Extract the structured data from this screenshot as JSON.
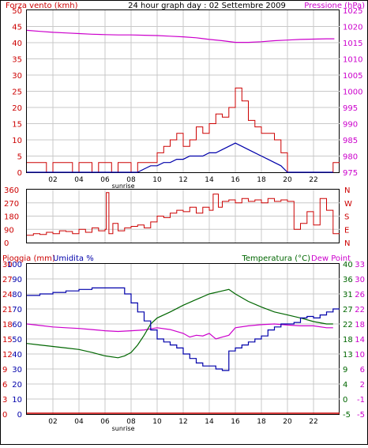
{
  "header": {
    "wind_label": "Forza vento (kmh)",
    "title": "24 hour graph day : 02 Settembre 2009",
    "pressure_label": "Pressione (hPa)"
  },
  "bottom_header": {
    "rain_label": "Pioggia (mm)",
    "humidity_label": "Umidita %",
    "temp_label": "Temperatura (°C)",
    "dew_label": "Dew Point"
  },
  "colors": {
    "wind": "#cc0000",
    "wind_avg": "#0000aa",
    "pressure": "#cc00cc",
    "direction": "#cc0000",
    "humidity": "#0000aa",
    "temperature": "#006600",
    "dewpoint": "#cc00cc",
    "rain": "#cc0000",
    "grid": "#c8c8c8",
    "border": "#000000"
  },
  "chart_data": [
    {
      "type": "line",
      "name": "wind_pressure",
      "x_tick_labels": [
        "02",
        "04",
        "06",
        "08",
        "10",
        "12",
        "14",
        "16",
        "18",
        "20",
        "22"
      ],
      "annotation": "sunrise",
      "y_left": {
        "label": "Forza vento (kmh)",
        "range": [
          0,
          50
        ],
        "ticks": [
          "0",
          "5",
          "10",
          "15",
          "20",
          "25",
          "30",
          "35",
          "40",
          "45",
          "50"
        ]
      },
      "y_right": {
        "label": "Pressione (hPa)",
        "range": [
          975,
          1025
        ],
        "ticks": [
          "975",
          "980",
          "985",
          "990",
          "995",
          "1000",
          "1005",
          "1010",
          "1015",
          "1020",
          "1025"
        ]
      },
      "series": [
        {
          "key": "gust",
          "hours": [
            0,
            0.5,
            1,
            1.5,
            2,
            2.5,
            3,
            3.5,
            4,
            4.5,
            5,
            5.5,
            6,
            6.5,
            7,
            7.5,
            8,
            8.5,
            9,
            9.5,
            10,
            10.5,
            11,
            11.5,
            12,
            12.5,
            13,
            13.5,
            14,
            14.5,
            15,
            15.5,
            16,
            16.5,
            17,
            17.5,
            18,
            18.5,
            19,
            19.5,
            20,
            20.5,
            21,
            21.5,
            22,
            22.5,
            23,
            23.5
          ],
          "values": [
            3,
            3,
            3,
            0,
            3,
            3,
            3,
            0,
            3,
            3,
            0,
            3,
            3,
            0,
            3,
            3,
            0,
            3,
            3,
            3,
            6,
            8,
            10,
            12,
            8,
            10,
            14,
            12,
            15,
            18,
            17,
            20,
            26,
            22,
            16,
            14,
            12,
            12,
            10,
            6,
            0,
            0,
            0,
            0,
            0,
            0,
            0,
            3
          ]
        },
        {
          "key": "average",
          "hours": [
            0,
            1,
            2,
            3,
            4,
            5,
            6,
            7,
            8,
            8.5,
            9,
            9.5,
            10,
            10.5,
            11,
            11.5,
            12,
            12.5,
            13,
            13.5,
            14,
            14.5,
            15,
            15.5,
            16,
            16.5,
            17,
            17.5,
            18,
            18.5,
            19,
            19.5,
            20,
            21,
            22,
            23,
            23.5
          ],
          "values": [
            0,
            0,
            0,
            0,
            0,
            0,
            0,
            0,
            0,
            0,
            1,
            2,
            2,
            3,
            3,
            4,
            4,
            5,
            5,
            5,
            6,
            6,
            7,
            8,
            9,
            8,
            7,
            6,
            5,
            4,
            3,
            2,
            0,
            0,
            0,
            0,
            0
          ]
        },
        {
          "key": "pressure",
          "name": "Pressione (hPa)",
          "hours": [
            0,
            1,
            2,
            3,
            4,
            5,
            6,
            7,
            8,
            9,
            10,
            11,
            12,
            13,
            14,
            15,
            16,
            17,
            18,
            19,
            20,
            21,
            22,
            23,
            23.6
          ],
          "values": [
            1018.8,
            1018.5,
            1018.2,
            1018,
            1017.8,
            1017.6,
            1017.5,
            1017.4,
            1017.4,
            1017.3,
            1017.2,
            1017,
            1016.8,
            1016.5,
            1016,
            1015.6,
            1015.1,
            1015.1,
            1015.3,
            1015.6,
            1015.8,
            1016,
            1016.1,
            1016.2,
            1016.2
          ]
        }
      ]
    },
    {
      "type": "line",
      "name": "wind_direction",
      "y_left": {
        "range": [
          0,
          360
        ],
        "ticks": [
          "0",
          "90",
          "180",
          "270",
          "360"
        ]
      },
      "y_right": {
        "ticks": [
          "N",
          "E",
          "S",
          "W",
          "N"
        ]
      },
      "series": [
        {
          "key": "direction",
          "hours": [
            0,
            0.5,
            1,
            1.5,
            2,
            2.5,
            3,
            3.5,
            4,
            4.5,
            5,
            5.5,
            6,
            6.1,
            6.3,
            6.6,
            7,
            7.5,
            8,
            8.5,
            9,
            9.5,
            10,
            10.5,
            11,
            11.5,
            12,
            12.5,
            13,
            13.5,
            14,
            14.3,
            14.7,
            15,
            15.5,
            16,
            16.5,
            17,
            17.5,
            18,
            18.5,
            19,
            19.5,
            20,
            20.5,
            21,
            21.5,
            22,
            22.5,
            23,
            23.5
          ],
          "values": [
            50,
            60,
            55,
            70,
            60,
            80,
            75,
            60,
            90,
            70,
            100,
            80,
            90,
            340,
            60,
            130,
            80,
            100,
            110,
            120,
            100,
            140,
            180,
            170,
            200,
            220,
            210,
            240,
            200,
            240,
            220,
            330,
            240,
            280,
            290,
            270,
            300,
            280,
            290,
            270,
            300,
            280,
            290,
            280,
            90,
            130,
            210,
            120,
            300,
            220,
            60
          ]
        }
      ]
    },
    {
      "type": "line",
      "name": "humidity_temperature",
      "y_left_rain": {
        "label": "Pioggia (mm)",
        "ticks": [
          "0",
          "3",
          "6",
          "9",
          "12",
          "15",
          "18",
          "21",
          "24",
          "27",
          "30"
        ]
      },
      "y_left_humidity": {
        "label": "Umidita %",
        "range": [
          0,
          100
        ],
        "ticks": [
          "0",
          "10",
          "20",
          "30",
          "40",
          "50",
          "60",
          "70",
          "80",
          "90",
          "100"
        ]
      },
      "y_right_temp": {
        "label": "Temperatura (°C)",
        "ticks": [
          "-5",
          "0",
          "4",
          "9",
          "13",
          "18",
          "22",
          "27",
          "31",
          "36",
          "40"
        ]
      },
      "y_right_dew": {
        "label": "Dew Point",
        "ticks": [
          "-5",
          "-1",
          "2",
          "6",
          "10",
          "14",
          "18",
          "22",
          "26",
          "30",
          "33"
        ]
      },
      "series": [
        {
          "key": "humidity",
          "name": "Umidita %",
          "hours": [
            0,
            1,
            2,
            3,
            4,
            5,
            6,
            7,
            7.5,
            8,
            8.5,
            9,
            9.5,
            10,
            10.5,
            11,
            11.5,
            12,
            12.5,
            13,
            13.5,
            14,
            14.5,
            15,
            15.5,
            16,
            16.5,
            17,
            17.5,
            18,
            18.5,
            19,
            19.5,
            20,
            20.5,
            21,
            21.5,
            22,
            22.5,
            23,
            23.5
          ],
          "values": [
            79,
            80,
            81,
            82,
            83,
            84,
            84,
            84,
            80,
            74,
            68,
            62,
            56,
            50,
            48,
            46,
            44,
            40,
            37,
            34,
            32,
            32,
            30,
            29,
            42,
            44,
            46,
            48,
            50,
            52,
            56,
            58,
            60,
            60,
            61,
            64,
            65,
            64,
            66,
            68,
            70
          ]
        },
        {
          "key": "temperature",
          "name": "Temperatura (°C)",
          "hours": [
            0,
            1,
            2,
            3,
            4,
            5,
            6,
            7,
            7.5,
            8,
            8.5,
            9,
            9.5,
            10,
            11,
            12,
            13,
            14,
            15,
            15.5,
            16,
            17,
            18,
            19,
            20,
            21,
            22,
            23,
            23.5
          ],
          "values": [
            16.5,
            16,
            15.5,
            15,
            14.5,
            13.5,
            12.5,
            12,
            12.5,
            13.5,
            16,
            19,
            22,
            24,
            26,
            28,
            29.5,
            31,
            32,
            32.5,
            31,
            29,
            27.5,
            26,
            25,
            24,
            22.8,
            22,
            22
          ]
        },
        {
          "key": "dewpoint",
          "name": "Dew Point",
          "hours": [
            0,
            1,
            2,
            3,
            4,
            5,
            6,
            7,
            8,
            9,
            10,
            11,
            12,
            12.5,
            13,
            13.5,
            14,
            14.5,
            15,
            15.5,
            16,
            17,
            18,
            19,
            20,
            21,
            22,
            23,
            23.5
          ],
          "values": [
            18,
            17.6,
            17.2,
            17,
            16.8,
            16.5,
            16.2,
            16,
            16.2,
            16.4,
            17,
            16.5,
            15.5,
            14.5,
            15,
            14.8,
            15.5,
            14,
            14.5,
            15,
            17,
            17.5,
            17.8,
            18,
            17.7,
            17.5,
            17.5,
            17,
            17
          ]
        },
        {
          "key": "rain",
          "name": "Pioggia (mm)",
          "hours": [
            0,
            23.6
          ],
          "values": [
            0,
            0
          ]
        }
      ]
    }
  ]
}
